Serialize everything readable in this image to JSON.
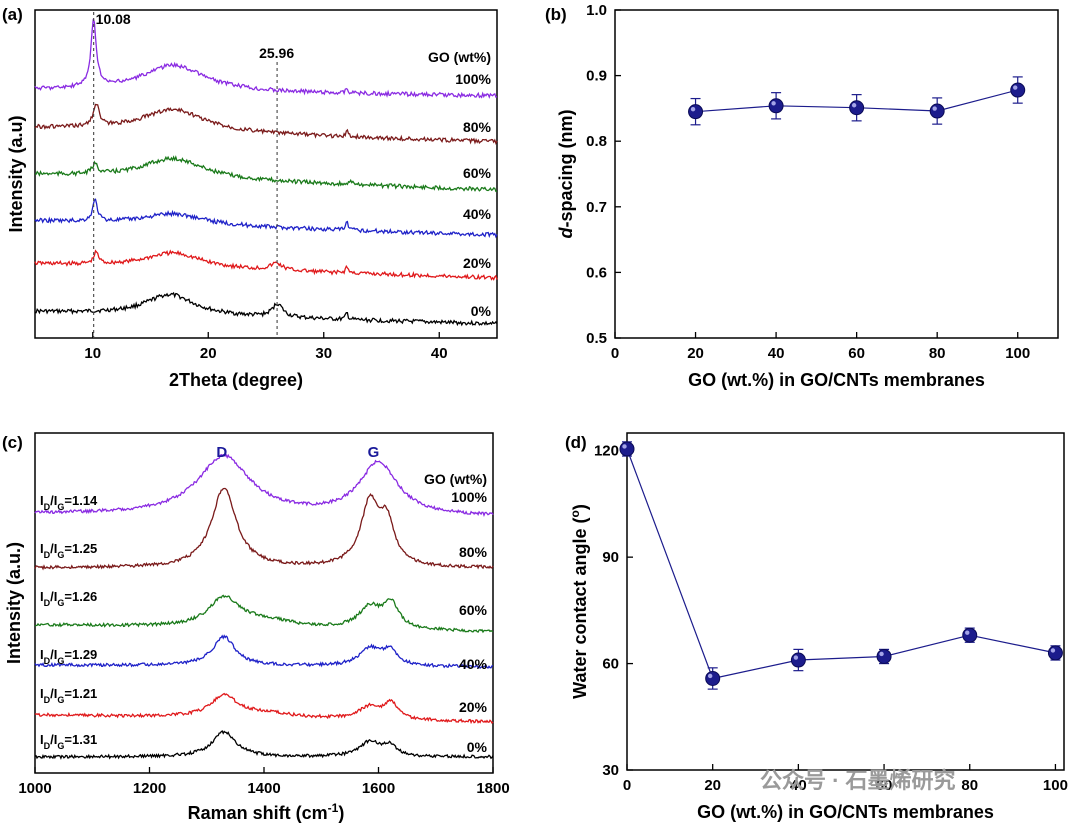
{
  "colors": {
    "0%": "#000000",
    "20%": "#e0191b",
    "40%": "#1f22c8",
    "60%": "#1a7a1a",
    "80%": "#7a1a1a",
    "100%": "#8a2be2",
    "marker": "#1c1c8c",
    "peak_text": "#1a1a9a"
  },
  "watermark": "公众号 · 石墨烯研究",
  "chart_data": [
    {
      "id": "a",
      "type": "line",
      "panel": "(a)",
      "xlabel": "2Theta (degree)",
      "ylabel": "Intensity (a.u)",
      "xlim": [
        5,
        45
      ],
      "xticks": [
        10,
        20,
        30,
        40
      ],
      "legend_title": "GO (wt%)",
      "series_names": [
        "0%",
        "20%",
        "40%",
        "60%",
        "80%",
        "100%"
      ],
      "ref_lines": [
        {
          "x": 10.08,
          "label": "10.08"
        },
        {
          "x": 25.96,
          "label": "25.96"
        }
      ],
      "peaks": {
        "0%": [
          [
            16.7,
            0.55,
            2.6
          ],
          [
            26.0,
            0.35,
            0.55
          ],
          [
            32.0,
            0.18,
            0.12
          ]
        ],
        "20%": [
          [
            10.3,
            0.3,
            0.25
          ],
          [
            17.0,
            0.4,
            3.0
          ],
          [
            25.9,
            0.18,
            0.6
          ],
          [
            32.0,
            0.18,
            0.12
          ]
        ],
        "40%": [
          [
            10.2,
            0.55,
            0.25
          ],
          [
            17.0,
            0.3,
            3.2
          ],
          [
            32.0,
            0.22,
            0.12
          ]
        ],
        "60%": [
          [
            10.2,
            0.25,
            0.3
          ],
          [
            17.0,
            0.55,
            3.3
          ],
          [
            32.5,
            0.12,
            0.15
          ]
        ],
        "80%": [
          [
            10.3,
            0.6,
            0.3
          ],
          [
            17.0,
            0.6,
            3.3
          ],
          [
            32.0,
            0.15,
            0.12
          ]
        ],
        "100%": [
          [
            10.08,
            1.75,
            0.28
          ],
          [
            17.0,
            0.7,
            3.3
          ],
          [
            32.0,
            0.12,
            0.12
          ]
        ]
      }
    },
    {
      "id": "b",
      "type": "scatter",
      "panel": "(b)",
      "xlabel": "GO (wt.%) in GO/CNTs membranes",
      "ylabel_italic": "d",
      "ylabel_rest": "-spacing (nm)",
      "x": [
        20,
        40,
        60,
        80,
        100
      ],
      "y": [
        0.845,
        0.854,
        0.851,
        0.846,
        0.878
      ],
      "yerr": [
        0.02,
        0.02,
        0.02,
        0.02,
        0.02
      ],
      "xlim": [
        0,
        110
      ],
      "ylim": [
        0.5,
        1.0
      ],
      "xticks": [
        0,
        20,
        40,
        60,
        80,
        100
      ],
      "yticks": [
        "0.5",
        "0.6",
        "0.7",
        "0.8",
        "0.9",
        "1.0"
      ]
    },
    {
      "id": "c",
      "type": "line",
      "panel": "(c)",
      "xlabel_main": "Raman shift (cm",
      "xlabel_sup": "-1",
      "xlabel_end": ")",
      "ylabel": "Intensity (a.u.)",
      "xlim": [
        1000,
        1800
      ],
      "xticks": [
        1000,
        1200,
        1400,
        1600,
        1800
      ],
      "legend_title": "GO (wt%)",
      "peak_labels": [
        {
          "x": 1335,
          "label": "D"
        },
        {
          "x": 1600,
          "label": "G"
        }
      ],
      "series_names": [
        "0%",
        "20%",
        "40%",
        "60%",
        "80%",
        "100%"
      ],
      "ratios": {
        "0%": "1.31",
        "20%": "1.21",
        "40%": "1.29",
        "60%": "1.26",
        "80%": "1.25",
        "100%": "1.14"
      },
      "ratio_prefix": "I",
      "ratio_sub_d": "D",
      "ratio_sub_g": "G",
      "peaks": {
        "0%": [
          [
            1330,
            1.0,
            25
          ],
          [
            1585,
            0.6,
            22
          ],
          [
            1620,
            0.4,
            14
          ]
        ],
        "20%": [
          [
            1330,
            0.85,
            28
          ],
          [
            1400,
            0.2,
            60
          ],
          [
            1585,
            0.5,
            24
          ],
          [
            1622,
            0.65,
            14
          ]
        ],
        "40%": [
          [
            1330,
            1.15,
            24
          ],
          [
            1585,
            0.7,
            22
          ],
          [
            1620,
            0.6,
            16
          ]
        ],
        "60%": [
          [
            1330,
            1.15,
            32
          ],
          [
            1400,
            0.3,
            60
          ],
          [
            1585,
            0.85,
            24
          ],
          [
            1622,
            1.0,
            16
          ]
        ],
        "80%": [
          [
            1330,
            3.2,
            26
          ],
          [
            1585,
            2.5,
            20
          ],
          [
            1615,
            1.6,
            16
          ]
        ],
        "100%": [
          [
            1330,
            2.35,
            55
          ],
          [
            1600,
            2.1,
            40
          ]
        ]
      }
    },
    {
      "id": "d",
      "type": "scatter",
      "panel": "(d)",
      "xlabel": "GO (wt.%) in GO/CNTs membranes",
      "ylabel_main": "Water contact angle (",
      "ylabel_sup": "o",
      "ylabel_end": ")",
      "x": [
        0,
        20,
        40,
        60,
        80,
        100
      ],
      "y": [
        120.5,
        55.8,
        61.0,
        62.0,
        68.0,
        63.0
      ],
      "yerr": [
        2,
        3,
        3,
        2,
        2,
        2
      ],
      "xlim": [
        0,
        102
      ],
      "ylim": [
        30,
        125
      ],
      "xticks": [
        0,
        20,
        40,
        60,
        80,
        100
      ],
      "yticks": [
        30,
        60,
        90,
        120
      ]
    }
  ]
}
